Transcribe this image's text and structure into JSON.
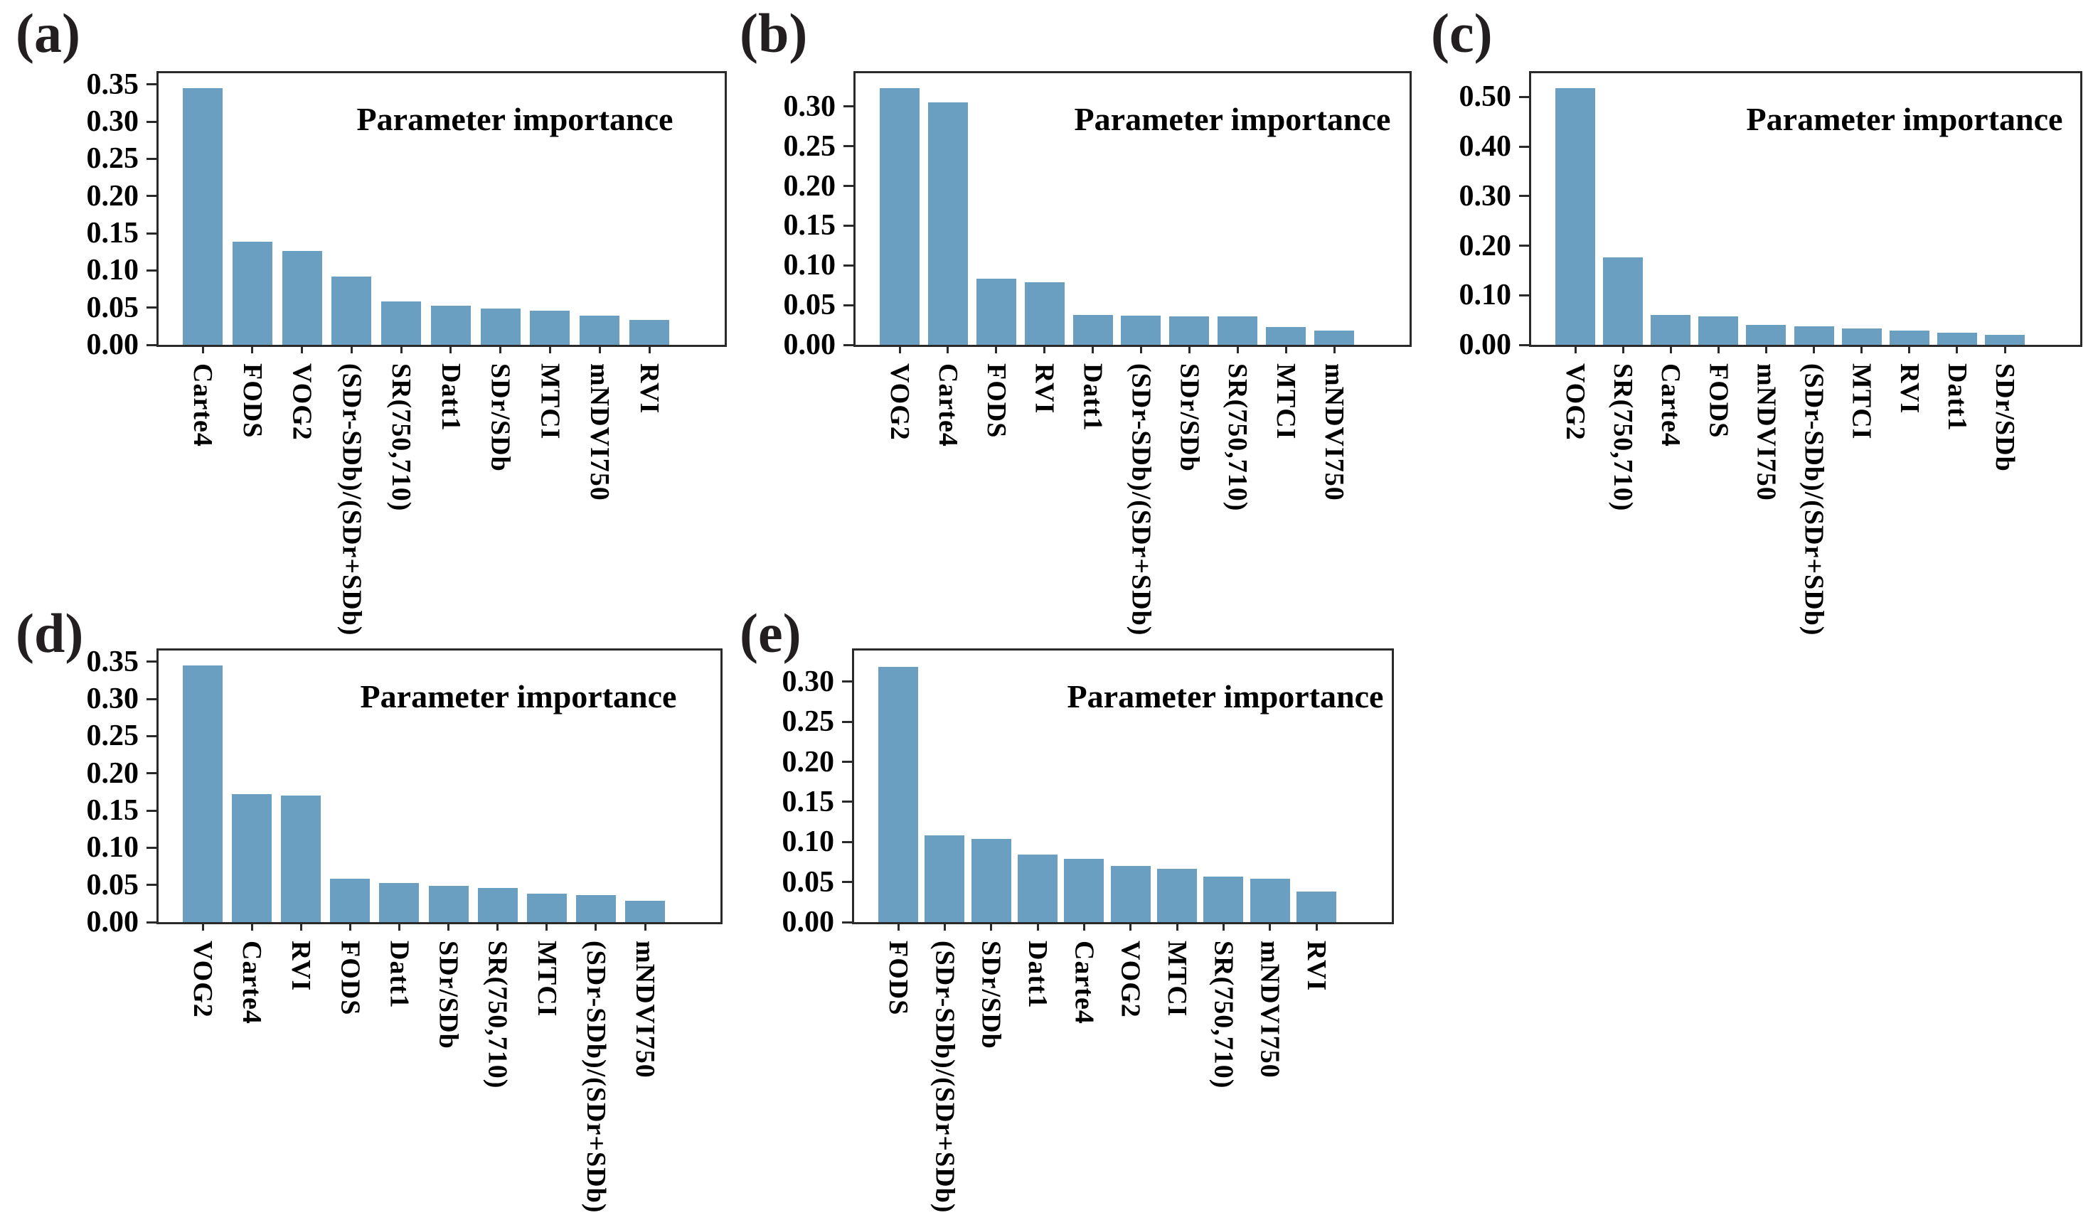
{
  "figure": {
    "background": "#ffffff",
    "description_visible_text_only": true
  },
  "style": {
    "bar_color": "#6B9FC1",
    "axis_color": "#2a2a2a",
    "text_color": "#000000",
    "panel_label_color": "#231f20"
  },
  "chart_data": [
    {
      "id": "a",
      "panel_label": "(a)",
      "title": "Parameter importance",
      "type": "bar",
      "xlabel": "",
      "ylabel": "",
      "grid": false,
      "legend": "none",
      "categories": [
        "Carte4",
        "FODS",
        "VOG2",
        "(SDr-SDb)/(SDr+SDb)",
        "SR(750,710)",
        "Datt1",
        "SDr/SDb",
        "MTCI",
        "mNDVI750",
        "RVI"
      ],
      "values": [
        0.345,
        0.139,
        0.126,
        0.092,
        0.058,
        0.053,
        0.049,
        0.046,
        0.039,
        0.033
      ],
      "yticks": [
        "0.00",
        "0.05",
        "0.10",
        "0.15",
        "0.20",
        "0.25",
        "0.30",
        "0.35"
      ],
      "ylim": [
        0,
        0.365
      ]
    },
    {
      "id": "b",
      "panel_label": "(b)",
      "title": "Parameter importance",
      "type": "bar",
      "xlabel": "",
      "ylabel": "",
      "grid": false,
      "legend": "none",
      "categories": [
        "VOG2",
        "Carte4",
        "FODS",
        "RVI",
        "Datt1",
        "(SDr-SDb)/(SDr+SDb)",
        "SDr/SDb",
        "SR(750,710)",
        "MTCI",
        "mNDVI750"
      ],
      "values": [
        0.323,
        0.305,
        0.083,
        0.079,
        0.038,
        0.037,
        0.036,
        0.036,
        0.022,
        0.018
      ],
      "yticks": [
        "0.00",
        "0.05",
        "0.10",
        "0.15",
        "0.20",
        "0.25",
        "0.30"
      ],
      "ylim": [
        0,
        0.342
      ]
    },
    {
      "id": "c",
      "panel_label": "(c)",
      "title": "Parameter importance",
      "type": "bar",
      "xlabel": "",
      "ylabel": "",
      "grid": false,
      "legend": "none",
      "categories": [
        "VOG2",
        "SR(750,710)",
        "Carte4",
        "FODS",
        "mNDVI750",
        "(SDr-SDb)/(SDr+SDb)",
        "MTCI",
        "RVI",
        "Datt1",
        "SDr/SDb"
      ],
      "values": [
        0.518,
        0.176,
        0.06,
        0.057,
        0.04,
        0.037,
        0.033,
        0.029,
        0.024,
        0.02
      ],
      "yticks": [
        "0.00",
        "0.10",
        "0.20",
        "0.30",
        "0.40",
        "0.50"
      ],
      "ylim": [
        0,
        0.548
      ]
    },
    {
      "id": "d",
      "panel_label": "(d)",
      "title": "Parameter importance",
      "type": "bar",
      "xlabel": "",
      "ylabel": "",
      "grid": false,
      "legend": "none",
      "categories": [
        "VOG2",
        "Carte4",
        "RVI",
        "FODS",
        "Datt1",
        "SDr/SDb",
        "SR(750,710)",
        "MTCI",
        "(SDr-SDb)/(SDr+SDb)",
        "mNDVI750"
      ],
      "values": [
        0.345,
        0.172,
        0.17,
        0.058,
        0.053,
        0.049,
        0.046,
        0.038,
        0.036,
        0.029
      ],
      "yticks": [
        "0.00",
        "0.05",
        "0.10",
        "0.15",
        "0.20",
        "0.25",
        "0.30",
        "0.35"
      ],
      "ylim": [
        0,
        0.365
      ]
    },
    {
      "id": "e",
      "panel_label": "(e)",
      "title": "Parameter importance",
      "type": "bar",
      "xlabel": "",
      "ylabel": "",
      "grid": false,
      "legend": "none",
      "categories": [
        "FODS",
        "(SDr-SDb)/(SDr+SDb)",
        "SDr/SDb",
        "Datt1",
        "Carte4",
        "VOG2",
        "MTCI",
        "SR(750,710)",
        "mNDVI750",
        "RVI"
      ],
      "values": [
        0.319,
        0.108,
        0.104,
        0.084,
        0.079,
        0.07,
        0.067,
        0.057,
        0.054,
        0.038
      ],
      "yticks": [
        "0.00",
        "0.05",
        "0.10",
        "0.15",
        "0.20",
        "0.25",
        "0.30"
      ],
      "ylim": [
        0,
        0.339
      ]
    }
  ]
}
